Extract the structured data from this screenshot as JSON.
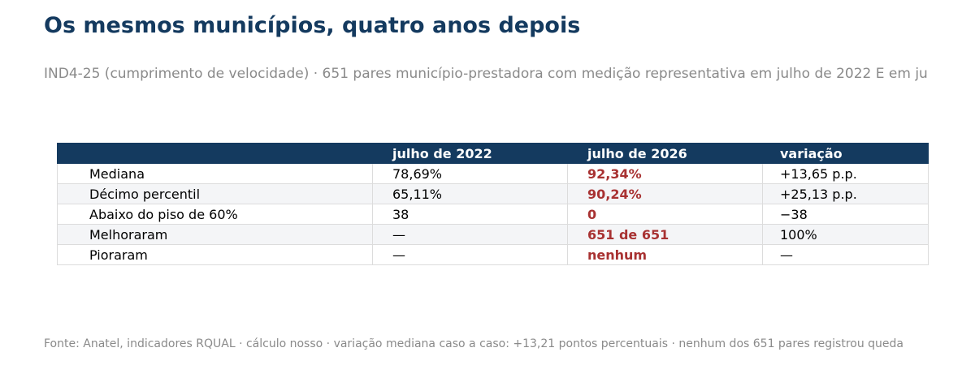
{
  "title": "Os mesmos municípios, quatro anos depois",
  "subtitle": "IND4-25 (cumprimento de velocidade) · 651 pares município-prestadora com medição representativa em julho de 2022 E em ju",
  "source": "Fonte: Anatel, indicadores RQUAL · cálculo nosso · variação mediana caso a caso: +13,21 pontos percentuais · nenhum dos 651 pares registrou queda",
  "colors": {
    "header_bg": "#143a5f",
    "title": "#143a5f",
    "highlight": "#a83232",
    "muted": "#8a8a8a"
  },
  "chart_data": {
    "type": "table",
    "columns": [
      "",
      "julho de 2022",
      "julho de 2026",
      "variação"
    ],
    "rows": [
      [
        "Mediana",
        "78,69%",
        "92,34%",
        "+13,65 p.p."
      ],
      [
        "Décimo percentil",
        "65,11%",
        "90,24%",
        "+25,13 p.p."
      ],
      [
        "Abaixo do piso de 60%",
        "38",
        "0",
        "−38"
      ],
      [
        "Melhoraram",
        "—",
        "651 de 651",
        "100%"
      ],
      [
        "Pioraram",
        "—",
        "nenhum",
        "—"
      ]
    ],
    "highlight_column": "julho de 2026"
  }
}
